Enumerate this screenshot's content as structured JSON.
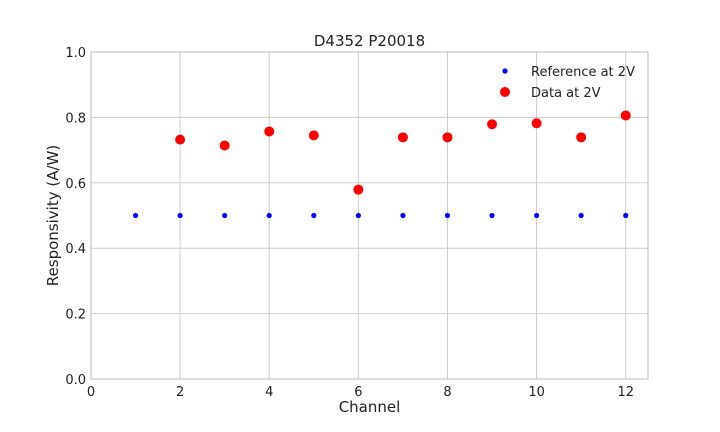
{
  "chart_data": {
    "type": "scatter",
    "title": "D4352 P20018",
    "xlabel": "Channel",
    "ylabel": "Responsivity (A/W)",
    "xlim": [
      0,
      12.5
    ],
    "ylim": [
      0.0,
      1.0
    ],
    "x_ticks": [
      0,
      2,
      4,
      6,
      8,
      10,
      12
    ],
    "x_tick_labels": [
      "0",
      "2",
      "4",
      "6",
      "8",
      "10",
      "12"
    ],
    "y_ticks": [
      0.0,
      0.2,
      0.4,
      0.6,
      0.8,
      1.0
    ],
    "y_tick_labels": [
      "0.0",
      "0.2",
      "0.4",
      "0.6",
      "0.8",
      "1.0"
    ],
    "grid": true,
    "legend_position": "top-right",
    "series": [
      {
        "name": "Reference at 2V",
        "color": "#0000ff",
        "marker": "small-dot",
        "x": [
          1,
          2,
          3,
          4,
          5,
          6,
          7,
          8,
          9,
          10,
          11,
          12
        ],
        "y": [
          0.5,
          0.5,
          0.5,
          0.5,
          0.5,
          0.5,
          0.5,
          0.5,
          0.5,
          0.5,
          0.5,
          0.5
        ]
      },
      {
        "name": "Data at 2V",
        "color": "#ff0000",
        "marker": "large-dot",
        "x": [
          2,
          3,
          4,
          5,
          6,
          7,
          8,
          9,
          10,
          11,
          12
        ],
        "y": [
          0.732,
          0.714,
          0.757,
          0.745,
          0.579,
          0.739,
          0.739,
          0.779,
          0.782,
          0.739,
          0.806
        ]
      }
    ]
  }
}
